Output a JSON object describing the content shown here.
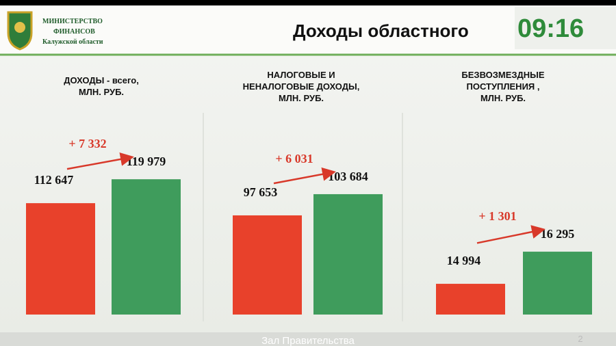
{
  "header": {
    "org": [
      "МИНИСТЕРСТВО",
      "ФИНАНСОВ",
      "Калужской области"
    ],
    "title": "Доходы областного",
    "clock": "09:16"
  },
  "footer": {
    "caption": "Зал Правительства",
    "page": "2"
  },
  "chart_data": [
    {
      "type": "bar",
      "title": [
        "ДОХОДЫ - всего,",
        "МЛН. РУБ."
      ],
      "categories": [
        null,
        null
      ],
      "values": [
        112647,
        119979
      ],
      "value_labels": [
        "112 647",
        "119 979"
      ],
      "colors": [
        "#e8412b",
        "#3f9c5c"
      ],
      "ylim": [
        78500,
        137200
      ],
      "annotation": "+ 7 332"
    },
    {
      "type": "bar",
      "title": [
        "НАЛОГОВЫЕ И",
        "НЕНАЛОГОВЫЕ ДОХОДЫ,",
        "МЛН. РУБ."
      ],
      "categories": [
        null,
        null
      ],
      "values": [
        97653,
        103684
      ],
      "value_labels": [
        "97 653",
        "103 684"
      ],
      "colors": [
        "#e8412b",
        "#3f9c5c"
      ],
      "ylim": [
        69450,
        123900
      ],
      "annotation": "+ 6 031"
    },
    {
      "type": "bar",
      "title": [
        "БЕЗВОЗМЕЗДНЫЕ",
        "ПОСТУПЛЕНИЯ ,",
        "МЛН. РУБ."
      ],
      "categories": [
        null,
        null
      ],
      "values": [
        14994,
        16295
      ],
      "value_labels": [
        "14 994",
        "16 295"
      ],
      "colors": [
        "#e8412b",
        "#3f9c5c"
      ],
      "ylim": [
        13750,
        21500
      ],
      "annotation": "+ 1 301"
    }
  ]
}
